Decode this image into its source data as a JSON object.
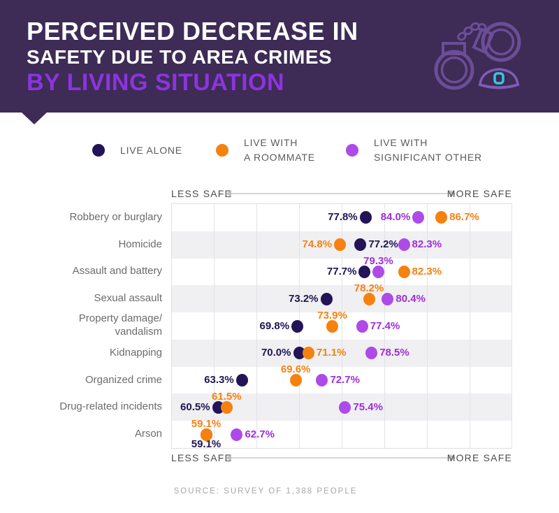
{
  "header": {
    "title_line1": "PERCEIVED DECREASE IN",
    "title_line2": "SAFETY DUE TO AREA CRIMES",
    "title_line3": "BY LIVING SITUATION",
    "colors": {
      "banner_bg": "#3E2B56",
      "accent_purple": "#8C34DF",
      "handcuffs": "#6B4E96",
      "police_cap": "#7E5CB6",
      "badge_teal": "#38C5D8"
    }
  },
  "legend": {
    "items": [
      {
        "key": "live-alone",
        "lines": [
          "LIVE ALONE"
        ],
        "color": "#221456"
      },
      {
        "key": "live-with-a-roommate",
        "lines": [
          "LIVE WITH",
          "A ROOMMATE"
        ],
        "color": "#F6810F"
      },
      {
        "key": "live-with-significant-other",
        "lines": [
          "LIVE WITH",
          "SIGNIFICANT OTHER"
        ],
        "color": "#AE4AE8"
      }
    ]
  },
  "axis": {
    "left_label": "LESS SAFE",
    "right_label": "MORE SAFE"
  },
  "chart_data": {
    "type": "scatter",
    "subtype": "horizontal-dot-plot",
    "xlim": [
      55,
      95
    ],
    "gridline_step_pct": 5,
    "grid": true,
    "row_banding": [
      "white",
      "gray",
      "white",
      "gray",
      "white",
      "gray",
      "white",
      "gray",
      "white"
    ],
    "categories": [
      [
        "Robbery or burglary"
      ],
      [
        "Homicide"
      ],
      [
        "Assault and battery"
      ],
      [
        "Sexual assault"
      ],
      [
        "Property damage/",
        "vandalism"
      ],
      [
        "Kidnapping"
      ],
      [
        "Organized crime"
      ],
      [
        "Drug-related incidents"
      ],
      [
        "Arson"
      ]
    ],
    "series": [
      {
        "name": "Live alone",
        "dot_color": "#221456",
        "text_color": "#1F1453",
        "values": [
          77.8,
          77.2,
          77.7,
          73.2,
          69.8,
          70.0,
          63.3,
          60.5,
          59.1
        ]
      },
      {
        "name": "Live with a roommate",
        "dot_color": "#F6810F",
        "text_color": "#F6810F",
        "values": [
          86.7,
          74.8,
          82.3,
          78.2,
          73.9,
          71.1,
          69.6,
          61.5,
          59.1
        ]
      },
      {
        "name": "Live with significant other",
        "dot_color": "#AE4AE8",
        "text_color": "#9D2EDC",
        "values": [
          84.0,
          82.3,
          79.3,
          80.4,
          77.4,
          78.5,
          72.7,
          75.4,
          62.7
        ]
      }
    ],
    "rows": [
      {
        "points": [
          {
            "series": 0,
            "value": 77.8,
            "label": "77.8%",
            "label_pos": "left"
          },
          {
            "series": 2,
            "value": 84.0,
            "label": "84.0%",
            "label_pos": "left"
          },
          {
            "series": 1,
            "value": 86.7,
            "label": "86.7%",
            "label_pos": "right"
          }
        ]
      },
      {
        "points": [
          {
            "series": 1,
            "value": 74.8,
            "label": "74.8%",
            "label_pos": "left"
          },
          {
            "series": 0,
            "value": 77.2,
            "label": "77.2%",
            "label_pos": "right"
          },
          {
            "series": 2,
            "value": 82.3,
            "label": "82.3%",
            "label_pos": "right"
          }
        ]
      },
      {
        "points": [
          {
            "series": 0,
            "value": 77.7,
            "label": "77.7%",
            "label_pos": "left"
          },
          {
            "series": 2,
            "value": 79.3,
            "label": "79.3%",
            "label_pos": "above"
          },
          {
            "series": 1,
            "value": 82.3,
            "label": "82.3%",
            "label_pos": "right"
          }
        ]
      },
      {
        "points": [
          {
            "series": 0,
            "value": 73.2,
            "label": "73.2%",
            "label_pos": "left"
          },
          {
            "series": 1,
            "value": 78.2,
            "label": "78.2%",
            "label_pos": "above"
          },
          {
            "series": 2,
            "value": 80.4,
            "label": "80.4%",
            "label_pos": "right"
          }
        ]
      },
      {
        "points": [
          {
            "series": 0,
            "value": 69.8,
            "label": "69.8%",
            "label_pos": "left"
          },
          {
            "series": 1,
            "value": 73.9,
            "label": "73.9%",
            "label_pos": "above"
          },
          {
            "series": 2,
            "value": 77.4,
            "label": "77.4%",
            "label_pos": "right"
          }
        ]
      },
      {
        "points": [
          {
            "series": 0,
            "value": 70.0,
            "label": "70.0%",
            "label_pos": "left"
          },
          {
            "series": 1,
            "value": 71.1,
            "label": "71.1%",
            "label_pos": "right"
          },
          {
            "series": 2,
            "value": 78.5,
            "label": "78.5%",
            "label_pos": "right"
          }
        ]
      },
      {
        "points": [
          {
            "series": 0,
            "value": 63.3,
            "label": "63.3%",
            "label_pos": "left"
          },
          {
            "series": 1,
            "value": 69.6,
            "label": "69.6%",
            "label_pos": "above"
          },
          {
            "series": 2,
            "value": 72.7,
            "label": "72.7%",
            "label_pos": "right"
          }
        ]
      },
      {
        "points": [
          {
            "series": 0,
            "value": 60.5,
            "label": "60.5%",
            "label_pos": "left"
          },
          {
            "series": 1,
            "value": 61.5,
            "label": "61.5%",
            "label_pos": "above"
          },
          {
            "series": 2,
            "value": 75.4,
            "label": "75.4%",
            "label_pos": "right"
          }
        ]
      },
      {
        "points": [
          {
            "series": 0,
            "value": 59.1,
            "label": "59.1%",
            "label_pos": "below"
          },
          {
            "series": 1,
            "value": 59.1,
            "label": "59.1%",
            "label_pos": "above"
          },
          {
            "series": 2,
            "value": 62.7,
            "label": "62.7%",
            "label_pos": "right"
          }
        ]
      }
    ]
  },
  "source": "SOURCE: SURVEY OF 1,388 PEOPLE"
}
